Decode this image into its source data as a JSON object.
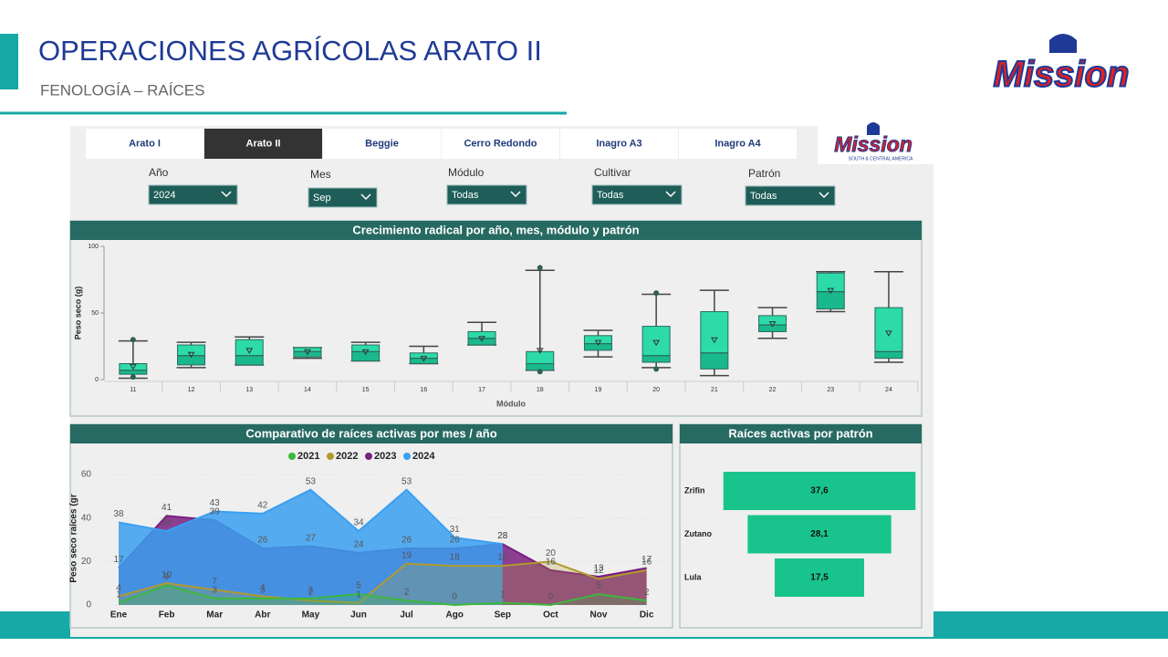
{
  "header": {
    "title": "OPERACIONES AGRÍCOLAS ARATO II",
    "subtitle": "FENOLOGÍA – RAÍCES",
    "logo": "Mission"
  },
  "dashboard": {
    "logo": "Mission",
    "logo_caption": "SOUTH & CENTRAL AMERICA",
    "tabs": [
      "Arato I",
      "Arato II",
      "Beggie",
      "Cerro Redondo",
      "Inagro A3",
      "Inagro A4"
    ],
    "selected_tab": 1,
    "filters": [
      {
        "label": "Año",
        "value": "2024"
      },
      {
        "label": "Mes",
        "value": "Sep"
      },
      {
        "label": "Módulo",
        "value": "Todas"
      },
      {
        "label": "Cultivar",
        "value": "Todas"
      },
      {
        "label": "Patrón",
        "value": "Todas"
      }
    ]
  },
  "chart_data": [
    {
      "type": "box",
      "title": "Crecimiento radical por año, mes, módulo y patrón",
      "x_label": "Módulo",
      "y_label": "Peso seco (g)",
      "categories": [
        "11",
        "12",
        "13",
        "14",
        "15",
        "16",
        "17",
        "18",
        "19",
        "20",
        "21",
        "22",
        "23",
        "24"
      ],
      "boxes": [
        {
          "low": 1,
          "q1": 4,
          "median": 7,
          "q3": 12,
          "high": 29,
          "mean": 10,
          "outliers": [
            30,
            2
          ]
        },
        {
          "low": 9,
          "q1": 11,
          "median": 18,
          "q3": 26,
          "high": 28,
          "mean": 19,
          "outliers": []
        },
        {
          "low": 11,
          "q1": 11,
          "median": 18,
          "q3": 30,
          "high": 32,
          "mean": 22,
          "outliers": []
        },
        {
          "low": 16,
          "q1": 17,
          "median": 21,
          "q3": 24,
          "high": 24,
          "mean": 21,
          "outliers": []
        },
        {
          "low": 14,
          "q1": 14,
          "median": 21,
          "q3": 26,
          "high": 28,
          "mean": 21,
          "outliers": []
        },
        {
          "low": 12,
          "q1": 12,
          "median": 16,
          "q3": 20,
          "high": 25,
          "mean": 16,
          "outliers": []
        },
        {
          "low": 26,
          "q1": 26,
          "median": 31,
          "q3": 36,
          "high": 43,
          "mean": 31,
          "outliers": []
        },
        {
          "low": 7,
          "q1": 7,
          "median": 12,
          "q3": 21,
          "high": 82,
          "mean": 22,
          "outliers": [
            84,
            6
          ]
        },
        {
          "low": 17,
          "q1": 22,
          "median": 27,
          "q3": 33,
          "high": 37,
          "mean": 28,
          "outliers": []
        },
        {
          "low": 9,
          "q1": 13,
          "median": 18,
          "q3": 40,
          "high": 64,
          "mean": 28,
          "outliers": [
            65,
            8
          ]
        },
        {
          "low": 3,
          "q1": 8,
          "median": 20,
          "q3": 51,
          "high": 67,
          "mean": 30,
          "outliers": []
        },
        {
          "low": 31,
          "q1": 36,
          "median": 41,
          "q3": 48,
          "high": 54,
          "mean": 42,
          "outliers": []
        },
        {
          "low": 51,
          "q1": 53,
          "median": 66,
          "q3": 80,
          "high": 81,
          "mean": 67,
          "outliers": []
        },
        {
          "low": 13,
          "q1": 16,
          "median": 21,
          "q3": 54,
          "high": 81,
          "mean": 35,
          "outliers": []
        }
      ],
      "ylim": [
        0,
        100
      ],
      "yticks": [
        0,
        50,
        100
      ]
    },
    {
      "type": "area",
      "title": "Comparativo de raíces activas por mes / año",
      "y_label": "Peso seco raíces (gr",
      "categories": [
        "Ene",
        "Feb",
        "Mar",
        "Abr",
        "May",
        "Jun",
        "Jul",
        "Ago",
        "Sep",
        "Oct",
        "Nov",
        "Dic"
      ],
      "series": [
        {
          "name": "2021",
          "color": "#3cb83c",
          "values": [
            1,
            9,
            3,
            3,
            3,
            5,
            2,
            0,
            1,
            0,
            5,
            2
          ]
        },
        {
          "name": "2022",
          "color": "#b09a2c",
          "values": [
            4,
            10,
            7,
            4,
            2,
            1,
            19,
            18,
            18,
            20,
            12,
            16
          ]
        },
        {
          "name": "2023",
          "color": "#7a1e80",
          "values": [
            17,
            41,
            39,
            26,
            27,
            24,
            26,
            26,
            28,
            16,
            13,
            17
          ]
        },
        {
          "name": "2024",
          "color": "#3a9ff0",
          "values": [
            38,
            34,
            43,
            42,
            53,
            34,
            53,
            31,
            28,
            null,
            null,
            null
          ]
        }
      ],
      "ylim": [
        0,
        60
      ],
      "yticks": [
        0,
        20,
        40,
        60
      ],
      "grid": true
    },
    {
      "type": "hbar",
      "title": "Raíces activas por patrón",
      "categories": [
        "Zrifin",
        "Zutano",
        "Lula"
      ],
      "values": [
        37.6,
        28.1,
        17.5
      ],
      "value_labels": [
        "37,6",
        "28,1",
        "17,5"
      ],
      "color": "#19c48c"
    }
  ]
}
